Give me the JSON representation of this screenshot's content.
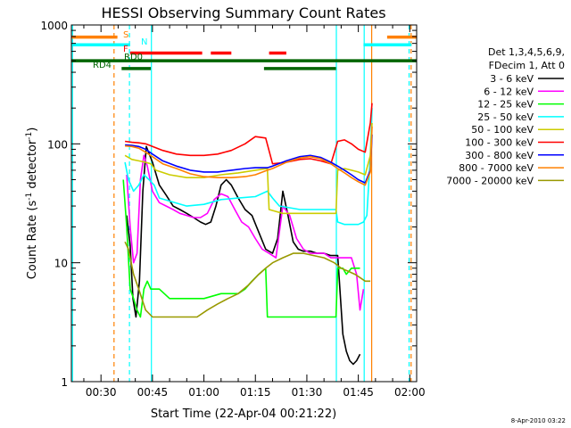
{
  "chart_data": {
    "type": "line",
    "title": "HESSI Observing Summary Count Rates",
    "xlabel": "Start Time (22-Apr-04 00:21:22)",
    "ylabel_main": "Count Rate (s",
    "ylabel_sup1": "-1",
    "ylabel_mid": " detector",
    "ylabel_sup2": "-1",
    "ylabel_end": ")",
    "yscale": "log",
    "ylim": [
      1,
      1000
    ],
    "xlim_minutes": [
      21.37,
      122
    ],
    "x_ticks": [
      {
        "v": 30,
        "label": "00:30"
      },
      {
        "v": 45,
        "label": "00:45"
      },
      {
        "v": 60,
        "label": "01:00"
      },
      {
        "v": 75,
        "label": "01:15"
      },
      {
        "v": 90,
        "label": "01:30"
      },
      {
        "v": 105,
        "label": "01:45"
      },
      {
        "v": 120,
        "label": "02:00"
      }
    ],
    "y_ticks": [
      {
        "v": 1,
        "label": "1"
      },
      {
        "v": 10,
        "label": "10"
      },
      {
        "v": 100,
        "label": "100"
      },
      {
        "v": 1000,
        "label": "1000"
      }
    ],
    "timestamp": "8-Apr-2010 03:22",
    "legend_header": [
      "Det 1,3,4,5,6,9,",
      "FDecim 1, Att 0"
    ],
    "legend_position": "right",
    "series": [
      {
        "name": "3 - 6 keV",
        "color": "#000000",
        "x": [
          37.5,
          38.5,
          39.3,
          40.2,
          41.2,
          42.2,
          43.2,
          45,
          47,
          49,
          51,
          53,
          55,
          57,
          59,
          60.5,
          62,
          63.5,
          65,
          66.5,
          68,
          70,
          72,
          74,
          76,
          78,
          80,
          81.5,
          83,
          84.5,
          86,
          87.5,
          89,
          91,
          93,
          95,
          97,
          99,
          100.5,
          101.5,
          102.5,
          103.5,
          104.5,
          105.5
        ],
        "y": [
          25,
          14,
          5,
          3.5,
          7,
          40,
          95,
          70,
          45,
          37,
          30,
          28,
          26,
          24,
          22,
          21,
          22,
          30,
          45,
          50,
          45,
          35,
          28,
          25,
          18,
          13,
          12,
          16,
          40,
          25,
          15,
          13,
          12.5,
          12.5,
          12,
          12,
          11.5,
          11.5,
          2.5,
          1.8,
          1.5,
          1.4,
          1.5,
          1.7
        ]
      },
      {
        "name": "6 - 12 keV",
        "color": "#ff00ff",
        "x": [
          37.5,
          38.5,
          39.5,
          40.5,
          41.5,
          42.5,
          43.5,
          45,
          47,
          49,
          51,
          53,
          55,
          57,
          59,
          61,
          63,
          65,
          67,
          69,
          71,
          73,
          75,
          77,
          79,
          81,
          83,
          85,
          87,
          89,
          91,
          93,
          95,
          97,
          99,
          101,
          103,
          104.5,
          105.5,
          106.5
        ],
        "y": [
          55,
          20,
          10,
          12,
          50,
          80,
          65,
          40,
          32,
          30,
          28,
          26,
          25,
          24,
          24,
          26,
          34,
          38,
          36,
          28,
          22,
          20,
          16,
          13,
          12,
          11,
          30,
          25,
          16,
          13,
          12,
          12,
          12,
          11,
          11,
          11,
          11,
          8,
          4,
          6
        ]
      },
      {
        "name": "12 - 25 keV",
        "color": "#00ff00",
        "x": [
          36.5,
          37.5,
          38.5,
          39.5,
          40.5,
          41.5,
          42.5,
          43.5,
          44.5,
          47,
          50,
          55,
          60,
          65,
          70,
          72,
          74,
          76,
          78,
          78.5,
          80,
          85,
          90,
          95,
          98.5,
          99,
          100.5,
          101.5,
          103,
          104.5,
          105.5
        ],
        "y": [
          50,
          20,
          6,
          5,
          4,
          3.5,
          6,
          7,
          6,
          6,
          5,
          5,
          5,
          5.5,
          5.5,
          6,
          7,
          8,
          9,
          3.5,
          3.5,
          3.5,
          3.5,
          3.5,
          3.5,
          9,
          9,
          8,
          9,
          9,
          9
        ]
      },
      {
        "name": "25 - 50 keV",
        "color": "#00ffff",
        "x": [
          37,
          38,
          39.5,
          41,
          42.5,
          44,
          45.5,
          47,
          50,
          55,
          60,
          65,
          70,
          75,
          78.5,
          80,
          82,
          85,
          88,
          91,
          94,
          97,
          98.5,
          99,
          101,
          103,
          105,
          106.5,
          107.5,
          108.5,
          109
        ],
        "y": [
          70,
          50,
          40,
          45,
          55,
          50,
          45,
          35,
          33,
          30,
          31,
          34,
          35,
          36,
          40,
          35,
          30,
          29,
          28,
          28,
          28,
          28,
          28,
          22,
          21,
          21,
          21,
          22,
          25,
          80,
          200
        ]
      },
      {
        "name": "50 - 100 keV",
        "color": "#cccc00",
        "x": [
          37,
          39,
          41,
          43,
          44.5,
          46,
          50,
          55,
          60,
          65,
          70,
          75,
          78.5,
          79,
          83,
          87,
          91,
          95,
          98.5,
          99,
          101,
          103,
          105,
          107,
          108.5,
          109
        ],
        "y": [
          80,
          74,
          72,
          70,
          68,
          60,
          55,
          52,
          52,
          55,
          57,
          60,
          62,
          28,
          26,
          26,
          26,
          26,
          26,
          60,
          62,
          60,
          58,
          55,
          80,
          150
        ]
      },
      {
        "name": "100 - 300 keV",
        "color": "#ff0000",
        "x": [
          37,
          39,
          41,
          43,
          45,
          48,
          52,
          56,
          60,
          64,
          68,
          72,
          75,
          78,
          80,
          84,
          88,
          91,
          94,
          97,
          99,
          101,
          103,
          105,
          107,
          108.5,
          109
        ],
        "y": [
          105,
          103,
          102,
          100,
          95,
          88,
          82,
          80,
          80,
          82,
          88,
          100,
          115,
          112,
          68,
          70,
          74,
          75,
          72,
          68,
          105,
          108,
          100,
          90,
          85,
          150,
          220
        ]
      },
      {
        "name": "300 - 800 keV",
        "color": "#0000ff",
        "x": [
          37,
          39,
          41,
          43,
          45,
          48,
          52,
          56,
          60,
          64,
          68,
          72,
          75,
          78.5,
          80,
          84,
          88,
          91,
          94,
          97,
          99,
          101,
          103,
          105,
          107,
          108.5,
          109
        ],
        "y": [
          98,
          97,
          95,
          90,
          82,
          72,
          65,
          60,
          58,
          58,
          60,
          62,
          63,
          63,
          65,
          72,
          78,
          80,
          77,
          70,
          65,
          60,
          55,
          50,
          47,
          60,
          120
        ]
      },
      {
        "name": "800 - 7000 keV",
        "color": "#ff8000",
        "x": [
          37,
          39,
          41,
          43,
          45,
          48,
          52,
          56,
          60,
          64,
          68,
          72,
          75,
          78.5,
          80,
          84,
          88,
          91,
          94,
          97,
          99,
          101,
          103,
          105,
          107,
          108.5,
          109
        ],
        "y": [
          96,
          95,
          92,
          85,
          78,
          68,
          62,
          56,
          53,
          52,
          52,
          53,
          55,
          60,
          62,
          70,
          76,
          78,
          75,
          68,
          62,
          57,
          52,
          48,
          45,
          58,
          140
        ]
      },
      {
        "name": "7000 - 20000 keV",
        "color": "#999900",
        "x": [
          37,
          38,
          39.5,
          41,
          43,
          45,
          48,
          52,
          55,
          58,
          61,
          64,
          67,
          70,
          73,
          76,
          78,
          80,
          83,
          86,
          89,
          92,
          95,
          98,
          100,
          102,
          104,
          105.5,
          107,
          108.5
        ],
        "y": [
          15,
          13,
          8,
          6,
          4,
          3.5,
          3.5,
          3.5,
          3.5,
          3.5,
          4,
          4.5,
          5,
          5.5,
          6.5,
          8,
          9,
          10,
          11,
          12,
          12,
          11.5,
          11,
          10,
          9,
          8.5,
          8,
          7.5,
          7,
          7
        ]
      }
    ],
    "state_bars": [
      {
        "label": "S",
        "color": "#ff8000",
        "level": 790,
        "segments": [
          [
            21.4,
            34.8
          ],
          [
            113.4,
            122
          ]
        ]
      },
      {
        "label": "N",
        "color": "#00ffff",
        "level": 680,
        "segments": [
          [
            21.4,
            38.5
          ],
          [
            106.5,
            120.5
          ]
        ]
      },
      {
        "label": "F",
        "color": "#ff0000",
        "level": 580,
        "segments": [
          [
            38.5,
            59.5
          ],
          [
            62,
            68
          ],
          [
            79,
            84
          ]
        ]
      },
      {
        "label": "RD0",
        "color": "#006400",
        "level": 500,
        "segments": [
          [
            21.4,
            122
          ]
        ]
      },
      {
        "label": "RD4",
        "color": "#006400",
        "level": 430,
        "segments": [
          [
            36,
            44.5
          ],
          [
            77.5,
            98.5
          ]
        ]
      }
    ],
    "vlines": [
      {
        "x": 21.7,
        "color": "#00ffff",
        "style": "solid"
      },
      {
        "x": 33.8,
        "color": "#ff8000",
        "style": "dashed"
      },
      {
        "x": 38.3,
        "color": "#00ffff",
        "style": "dashed"
      },
      {
        "x": 44.7,
        "color": "#00ffff",
        "style": "solid"
      },
      {
        "x": 98.6,
        "color": "#00ffff",
        "style": "solid"
      },
      {
        "x": 106.7,
        "color": "#00ffff",
        "style": "solid"
      },
      {
        "x": 108.9,
        "color": "#ff8000",
        "style": "solid"
      },
      {
        "x": 119.8,
        "color": "#00ffff",
        "style": "dashed"
      },
      {
        "x": 120.4,
        "color": "#ff8000",
        "style": "dashed"
      }
    ],
    "grid": false
  }
}
